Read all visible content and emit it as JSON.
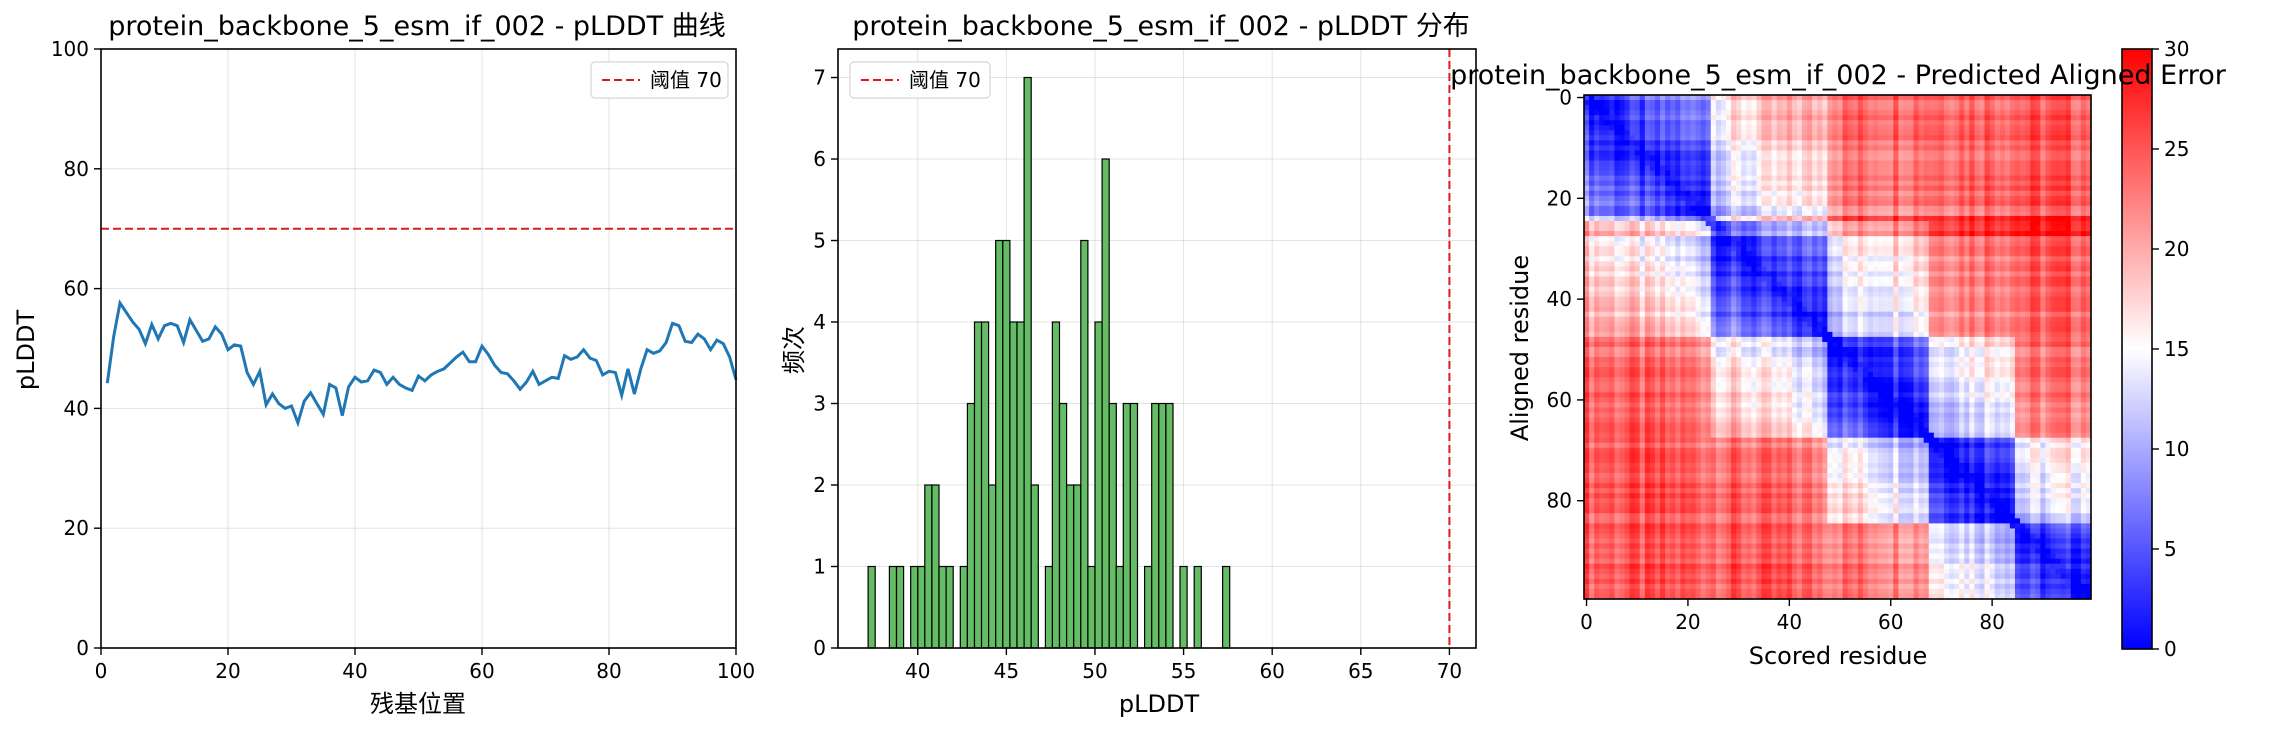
{
  "chart_data": [
    {
      "type": "line",
      "title": "protein_backbone_5_esm_if_002 - pLDDT 曲线",
      "xlabel": "残基位置",
      "ylabel": "pLDDT",
      "xlim": [
        0,
        100
      ],
      "ylim": [
        0,
        100
      ],
      "xticks": [
        0,
        20,
        40,
        60,
        80,
        100
      ],
      "yticks": [
        0,
        20,
        40,
        60,
        80,
        100
      ],
      "grid": true,
      "legend_position": "top-right",
      "threshold": {
        "value": 70,
        "label": "阈值 70",
        "color": "#e31a1c"
      },
      "series": [
        {
          "name": "pLDDT",
          "color": "#1f77b4",
          "x": [
            1,
            2,
            3,
            4,
            5,
            6,
            7,
            8,
            9,
            10,
            11,
            12,
            13,
            14,
            15,
            16,
            17,
            18,
            19,
            20,
            21,
            22,
            23,
            24,
            25,
            26,
            27,
            28,
            29,
            30,
            31,
            32,
            33,
            34,
            35,
            36,
            37,
            38,
            39,
            40,
            41,
            42,
            43,
            44,
            45,
            46,
            47,
            48,
            49,
            50,
            51,
            52,
            53,
            54,
            55,
            56,
            57,
            58,
            59,
            60,
            61,
            62,
            63,
            64,
            65,
            66,
            67,
            68,
            69,
            70,
            71,
            72,
            73,
            74,
            75,
            76,
            77,
            78,
            79,
            80,
            81,
            82,
            83,
            84,
            85,
            86,
            87,
            88,
            89,
            90,
            91,
            92,
            93,
            94,
            95,
            96,
            97,
            98,
            99,
            100
          ],
          "values": [
            44.2,
            52.0,
            57.6,
            56.0,
            54.4,
            53.2,
            50.8,
            54.0,
            51.6,
            53.8,
            54.2,
            53.8,
            51.0,
            54.8,
            53.0,
            51.2,
            51.6,
            53.6,
            52.4,
            49.8,
            50.6,
            50.4,
            46.0,
            44.0,
            46.2,
            40.6,
            42.4,
            40.8,
            40.0,
            40.4,
            37.6,
            41.2,
            42.6,
            40.8,
            39.0,
            44.0,
            43.4,
            38.8,
            43.6,
            45.2,
            44.4,
            44.6,
            46.4,
            46.0,
            44.0,
            45.2,
            44.0,
            43.4,
            43.0,
            45.4,
            44.6,
            45.6,
            46.2,
            46.6,
            47.6,
            48.6,
            49.4,
            47.8,
            47.8,
            50.4,
            49.0,
            47.2,
            46.0,
            45.8,
            44.6,
            43.2,
            44.4,
            46.2,
            44.0,
            44.6,
            45.2,
            45.0,
            48.8,
            48.2,
            48.6,
            49.8,
            48.4,
            48.0,
            45.6,
            46.2,
            46.0,
            42.2,
            46.6,
            42.4,
            46.6,
            49.8,
            49.2,
            49.6,
            51.0,
            54.2,
            53.8,
            51.2,
            51.0,
            52.4,
            51.6,
            49.8,
            51.4,
            50.8,
            48.6,
            44.8
          ]
        }
      ]
    },
    {
      "type": "bar",
      "title": "protein_backbone_5_esm_if_002 - pLDDT 分布",
      "xlabel": "pLDDT",
      "ylabel": "频次",
      "xlim": [
        35.5,
        71.5
      ],
      "ylim": [
        0,
        7.35
      ],
      "xticks": [
        40,
        45,
        50,
        55,
        60,
        65,
        70
      ],
      "yticks": [
        0,
        1,
        2,
        3,
        4,
        5,
        6,
        7
      ],
      "grid": true,
      "legend_position": "top-left",
      "threshold": {
        "value": 70,
        "label": "阈值 70",
        "color": "#e31a1c"
      },
      "bin_width": 0.4,
      "bin_starts": [
        37.2,
        38.4,
        38.8,
        39.6,
        40.0,
        40.4,
        40.8,
        41.2,
        41.6,
        42.4,
        42.8,
        43.2,
        43.6,
        44.0,
        44.4,
        44.8,
        45.2,
        45.6,
        46.0,
        46.4,
        47.2,
        47.6,
        48.0,
        48.4,
        48.8,
        49.2,
        49.6,
        50.0,
        50.4,
        50.8,
        51.2,
        51.6,
        52.0,
        52.8,
        53.2,
        53.6,
        54.0,
        54.8,
        55.6,
        57.2
      ],
      "values": [
        1,
        1,
        1,
        1,
        1,
        2,
        2,
        1,
        1,
        1,
        3,
        4,
        4,
        2,
        5,
        5,
        4,
        4,
        7,
        2,
        1,
        4,
        3,
        2,
        2,
        5,
        1,
        4,
        6,
        3,
        1,
        3,
        3,
        1,
        3,
        3,
        3,
        1,
        1,
        1
      ],
      "color": "#5cb85c"
    },
    {
      "type": "heatmap",
      "title": "protein_backbone_5_esm_if_002 - Predicted Aligned Error",
      "xlabel": "Scored residue",
      "ylabel": "Aligned residue",
      "size": 100,
      "xticks": [
        0,
        20,
        40,
        60,
        80
      ],
      "yticks": [
        0,
        20,
        40,
        60,
        80
      ],
      "colormap": "bwr",
      "vmin": 0,
      "vmax": 30,
      "colorbar_ticks": [
        0,
        5,
        10,
        15,
        20,
        25,
        30
      ],
      "domains": [
        [
          0,
          24
        ],
        [
          25,
          47
        ],
        [
          48,
          67
        ],
        [
          68,
          84
        ],
        [
          85,
          99
        ]
      ]
    }
  ]
}
